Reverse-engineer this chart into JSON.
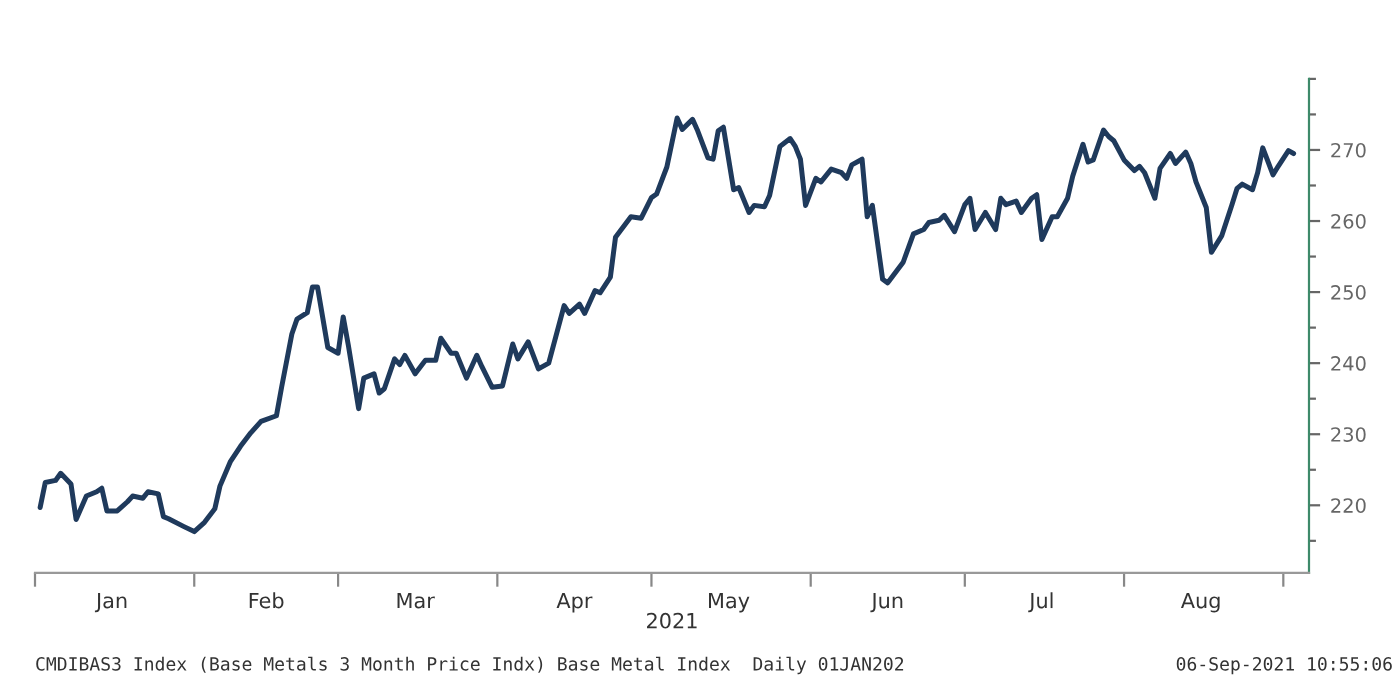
{
  "chart_data": {
    "type": "line",
    "xlabel": "2021",
    "x": [
      "2021-01-02",
      "2021-01-03",
      "2021-01-05",
      "2021-01-06",
      "2021-01-08",
      "2021-01-09",
      "2021-01-11",
      "2021-01-13",
      "2021-01-14",
      "2021-01-15",
      "2021-01-17",
      "2021-01-19",
      "2021-01-20",
      "2021-01-22",
      "2021-01-23",
      "2021-01-25",
      "2021-01-26",
      "2021-01-27",
      "2021-01-30",
      "2021-02-01",
      "2021-02-03",
      "2021-02-05",
      "2021-02-06",
      "2021-02-08",
      "2021-02-10",
      "2021-02-12",
      "2021-02-14",
      "2021-02-17",
      "2021-02-18",
      "2021-02-20",
      "2021-02-21",
      "2021-02-23",
      "2021-02-24",
      "2021-02-25",
      "2021-02-27",
      "2021-03-01",
      "2021-03-02",
      "2021-03-03",
      "2021-03-05",
      "2021-03-06",
      "2021-03-08",
      "2021-03-09",
      "2021-03-10",
      "2021-03-12",
      "2021-03-13",
      "2021-03-14",
      "2021-03-16",
      "2021-03-18",
      "2021-03-20",
      "2021-03-21",
      "2021-03-23",
      "2021-03-24",
      "2021-03-26",
      "2021-03-28",
      "2021-03-29",
      "2021-03-31",
      "2021-04-02",
      "2021-04-04",
      "2021-04-05",
      "2021-04-07",
      "2021-04-09",
      "2021-04-11",
      "2021-04-14",
      "2021-04-15",
      "2021-04-17",
      "2021-04-18",
      "2021-04-20",
      "2021-04-21",
      "2021-04-23",
      "2021-04-24",
      "2021-04-27",
      "2021-04-29",
      "2021-05-01",
      "2021-05-02",
      "2021-05-04",
      "2021-05-06",
      "2021-05-07",
      "2021-05-09",
      "2021-05-10",
      "2021-05-12",
      "2021-05-13",
      "2021-05-14",
      "2021-05-15",
      "2021-05-17",
      "2021-05-18",
      "2021-05-20",
      "2021-05-21",
      "2021-05-23",
      "2021-05-24",
      "2021-05-26",
      "2021-05-28",
      "2021-05-29",
      "2021-05-30",
      "2021-05-31",
      "2021-06-02",
      "2021-06-03",
      "2021-06-05",
      "2021-06-07",
      "2021-06-08",
      "2021-06-09",
      "2021-06-11",
      "2021-06-12",
      "2021-06-13",
      "2021-06-15",
      "2021-06-16",
      "2021-06-19",
      "2021-06-21",
      "2021-06-23",
      "2021-06-24",
      "2021-06-26",
      "2021-06-27",
      "2021-06-29",
      "2021-07-01",
      "2021-07-02",
      "2021-07-03",
      "2021-07-05",
      "2021-07-07",
      "2021-07-08",
      "2021-07-09",
      "2021-07-11",
      "2021-07-12",
      "2021-07-14",
      "2021-07-15",
      "2021-07-16",
      "2021-07-18",
      "2021-07-19",
      "2021-07-21",
      "2021-07-22",
      "2021-07-24",
      "2021-07-25",
      "2021-07-26",
      "2021-07-28",
      "2021-07-29",
      "2021-07-30",
      "2021-08-01",
      "2021-08-03",
      "2021-08-04",
      "2021-08-05",
      "2021-08-07",
      "2021-08-08",
      "2021-08-10",
      "2021-08-11",
      "2021-08-13",
      "2021-08-14",
      "2021-08-15",
      "2021-08-17",
      "2021-08-18",
      "2021-08-20",
      "2021-08-22",
      "2021-08-23",
      "2021-08-24",
      "2021-08-26",
      "2021-08-27",
      "2021-08-28",
      "2021-08-30",
      "2021-08-31",
      "2021-09-02",
      "2021-09-03"
    ],
    "series": [
      {
        "color": "#1f3a5c",
        "values": [
          219.7,
          223.2,
          223.5,
          224.5,
          223,
          218,
          221.3,
          221.9,
          222.4,
          219.2,
          219.2,
          220.5,
          221.3,
          221,
          221.9,
          221.6,
          218.4,
          218.1,
          217,
          216.3,
          217.6,
          219.5,
          222.7,
          226.1,
          228.3,
          230.2,
          231.8,
          232.6,
          236.6,
          244.1,
          246.2,
          247.1,
          250.7,
          250.7,
          242.2,
          241.4,
          246.5,
          242.5,
          233.6,
          237.9,
          238.5,
          235.8,
          236.4,
          240.6,
          239.8,
          241.1,
          238.5,
          240.4,
          240.4,
          243.5,
          241.4,
          241.4,
          237.9,
          241.1,
          239.5,
          236.6,
          236.8,
          242.7,
          240.6,
          243,
          239.2,
          240,
          248.1,
          247,
          248.3,
          247,
          250.2,
          249.9,
          252.1,
          257.7,
          260.6,
          260.4,
          263.3,
          263.8,
          267.6,
          274.5,
          272.9,
          274.3,
          272.7,
          268.9,
          268.7,
          272.7,
          273.2,
          264.4,
          264.7,
          261.2,
          262.2,
          262,
          263.6,
          270.5,
          271.6,
          270.5,
          268.7,
          262.2,
          266,
          265.5,
          267.3,
          266.8,
          266,
          267.9,
          268.7,
          260.6,
          262.2,
          251.8,
          251.3,
          254.2,
          258.2,
          258.8,
          259.8,
          260.1,
          260.8,
          258.5,
          262.3,
          263.2,
          258.8,
          261.2,
          258.8,
          263.2,
          262.3,
          262.8,
          261.2,
          263.2,
          263.7,
          257.4,
          260.6,
          260.6,
          263.2,
          266.3,
          270.8,
          268.3,
          268.6,
          272.8,
          271.9,
          271.3,
          268.6,
          267.1,
          267.7,
          266.8,
          263.2,
          267.4,
          269.5,
          268.1,
          269.7,
          268.1,
          265.5,
          261.9,
          255.6,
          257.9,
          262.3,
          264.6,
          265.2,
          264.4,
          266.8,
          270.3,
          266.5,
          267.7,
          269.9,
          269.5
        ]
      }
    ],
    "xlim": [
      "2021-01-01",
      "2021-09-06"
    ],
    "xticks": [
      {
        "value": "2021-01-01",
        "label": null
      },
      {
        "value": "2021-01-16",
        "label": "Jan"
      },
      {
        "value": "2021-02-01",
        "label": null
      },
      {
        "value": "2021-02-15",
        "label": "Feb"
      },
      {
        "value": "2021-03-01",
        "label": null
      },
      {
        "value": "2021-03-16",
        "label": "Mar"
      },
      {
        "value": "2021-04-01",
        "label": null
      },
      {
        "value": "2021-04-16",
        "label": "Apr"
      },
      {
        "value": "2021-05-01",
        "label": null
      },
      {
        "value": "2021-05-16",
        "label": "May"
      },
      {
        "value": "2021-06-01",
        "label": null
      },
      {
        "value": "2021-06-16",
        "label": "Jun"
      },
      {
        "value": "2021-07-01",
        "label": null
      },
      {
        "value": "2021-07-16",
        "label": "Jul"
      },
      {
        "value": "2021-08-01",
        "label": null
      },
      {
        "value": "2021-08-16",
        "label": "Aug"
      },
      {
        "value": "2021-09-01",
        "label": null
      }
    ],
    "ylim": [
      210.5,
      280
    ],
    "yticks": [
      {
        "value": 215,
        "label": null
      },
      220,
      {
        "value": 225,
        "label": null
      },
      230,
      {
        "value": 235,
        "label": null
      },
      240,
      {
        "value": 245,
        "label": null
      },
      250,
      {
        "value": 255,
        "label": null
      },
      260,
      {
        "value": 265,
        "label": null
      },
      270,
      {
        "value": 275,
        "label": null
      },
      {
        "value": 280,
        "label": null
      }
    ],
    "grid": false,
    "legend": false,
    "line_style": "solid",
    "marker": "none",
    "annotations": [
      "CMDIBAS3 Index (Base Metals 3 Month Price Indx) Base Metal Index  Daily 01JAN202",
      "06-Sep-2021 10:55:06"
    ]
  }
}
